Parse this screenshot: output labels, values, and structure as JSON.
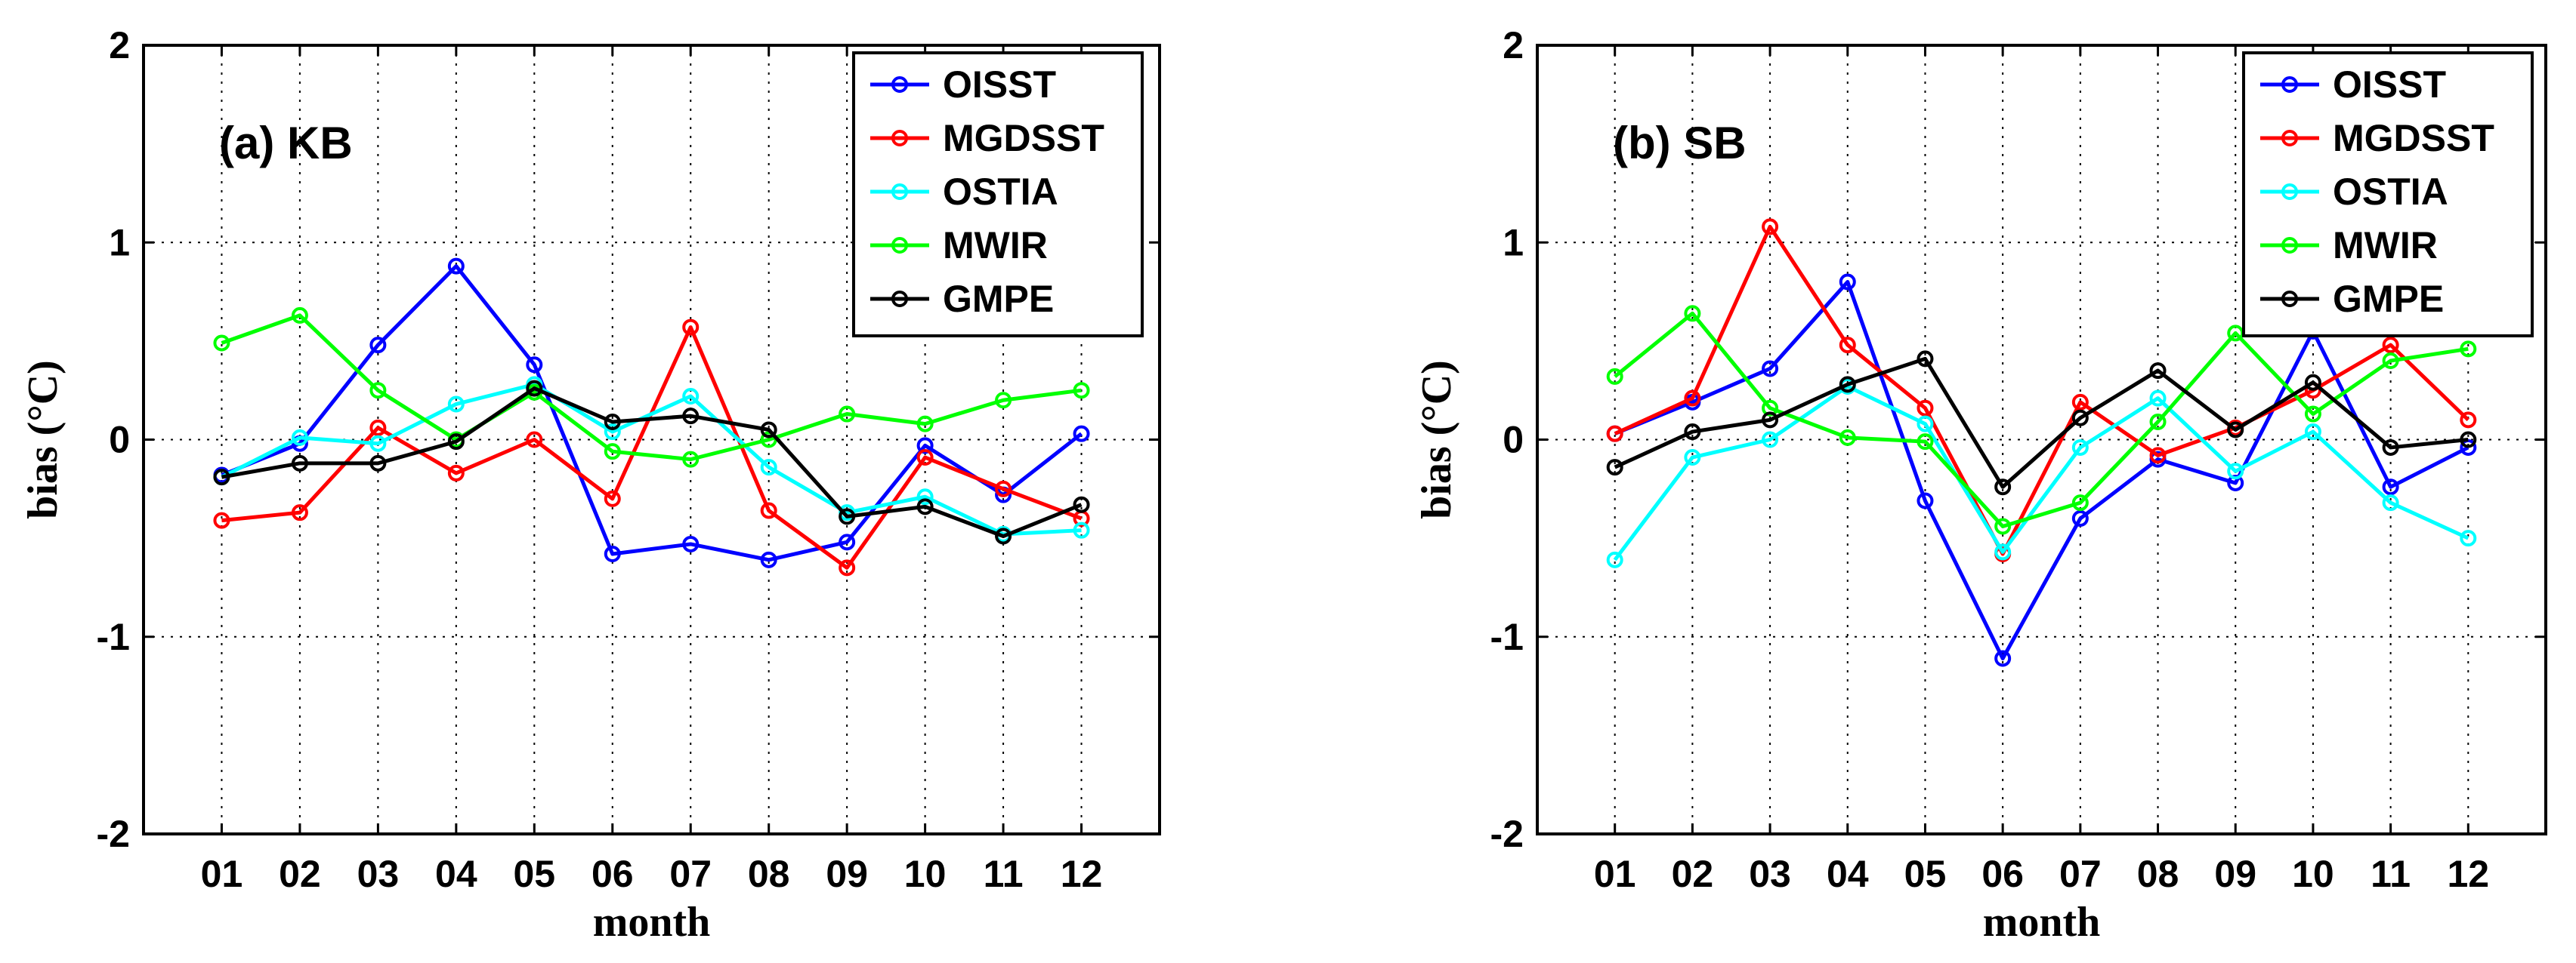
{
  "chart_data": [
    {
      "type": "line",
      "title": "(a) KB",
      "xlabel": "month",
      "ylabel": "bias (°C)",
      "categories": [
        "01",
        "02",
        "03",
        "04",
        "05",
        "06",
        "07",
        "08",
        "09",
        "10",
        "11",
        "12"
      ],
      "ylim": [
        -2,
        2
      ],
      "yticks": [
        "2",
        "1",
        "0",
        "-1",
        "-2"
      ],
      "grid": true,
      "legend_position": "top-right",
      "series": [
        {
          "name": "OISST",
          "color": "#0000ff",
          "values": [
            -0.18,
            -0.02,
            0.48,
            0.88,
            0.38,
            -0.58,
            -0.53,
            -0.61,
            -0.52,
            -0.03,
            -0.28,
            0.03
          ]
        },
        {
          "name": "MGDSST",
          "color": "#ff0000",
          "values": [
            -0.41,
            -0.37,
            0.06,
            -0.17,
            0.0,
            -0.3,
            0.57,
            -0.36,
            -0.65,
            -0.09,
            -0.25,
            -0.4
          ]
        },
        {
          "name": "OSTIA",
          "color": "#00ffff",
          "values": [
            -0.19,
            0.01,
            -0.02,
            0.18,
            0.28,
            0.04,
            0.22,
            -0.14,
            -0.37,
            -0.29,
            -0.48,
            -0.46
          ]
        },
        {
          "name": "MWIR",
          "color": "#00ff00",
          "values": [
            0.49,
            0.63,
            0.25,
            0.0,
            0.24,
            -0.06,
            -0.1,
            0.0,
            0.13,
            0.08,
            0.2,
            0.25
          ]
        },
        {
          "name": "GMPE",
          "color": "#000000",
          "values": [
            -0.19,
            -0.12,
            -0.12,
            -0.01,
            0.26,
            0.09,
            0.12,
            0.05,
            -0.39,
            -0.34,
            -0.49,
            -0.33
          ]
        }
      ]
    },
    {
      "type": "line",
      "title": "(b) SB",
      "xlabel": "month",
      "ylabel": "bias (°C)",
      "categories": [
        "01",
        "02",
        "03",
        "04",
        "05",
        "06",
        "07",
        "08",
        "09",
        "10",
        "11",
        "12"
      ],
      "ylim": [
        -2,
        2
      ],
      "yticks": [
        "2",
        "1",
        "0",
        "-1",
        "-2"
      ],
      "grid": true,
      "legend_position": "top-right",
      "series": [
        {
          "name": "OISST",
          "color": "#0000ff",
          "values": [
            0.03,
            0.19,
            0.36,
            0.8,
            -0.31,
            -1.11,
            -0.4,
            -0.1,
            -0.22,
            0.55,
            -0.24,
            -0.04
          ]
        },
        {
          "name": "MGDSST",
          "color": "#ff0000",
          "values": [
            0.03,
            0.21,
            1.08,
            0.48,
            0.16,
            -0.58,
            0.19,
            -0.08,
            0.06,
            0.25,
            0.48,
            0.1
          ]
        },
        {
          "name": "OSTIA",
          "color": "#00ffff",
          "values": [
            -0.61,
            -0.09,
            0.0,
            0.27,
            0.08,
            -0.57,
            -0.04,
            0.21,
            -0.16,
            0.04,
            -0.32,
            -0.5
          ]
        },
        {
          "name": "MWIR",
          "color": "#00ff00",
          "values": [
            0.32,
            0.64,
            0.16,
            0.01,
            -0.01,
            -0.44,
            -0.32,
            0.09,
            0.54,
            0.13,
            0.4,
            0.46
          ]
        },
        {
          "name": "GMPE",
          "color": "#000000",
          "values": [
            -0.14,
            0.04,
            0.1,
            0.28,
            0.41,
            -0.24,
            0.11,
            0.35,
            0.05,
            0.29,
            -0.04,
            0.0
          ]
        }
      ]
    }
  ]
}
